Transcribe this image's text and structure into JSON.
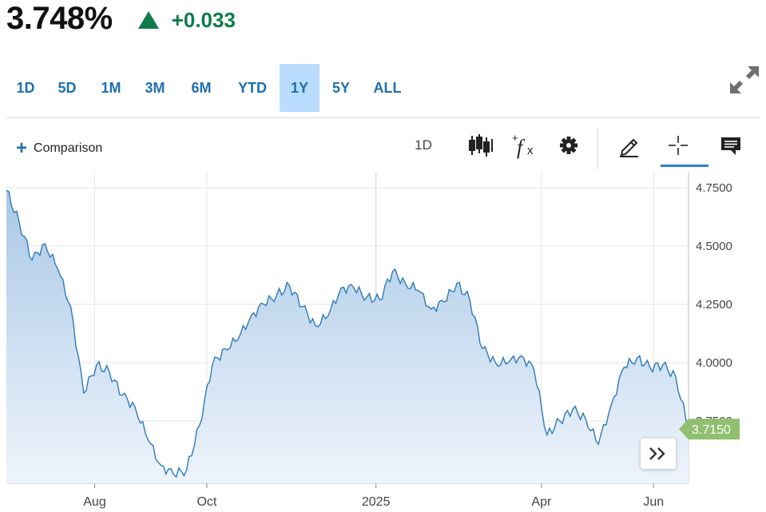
{
  "quote": {
    "price": "3.748%",
    "change": "+0.033",
    "direction_icon": "triangle-up-icon",
    "change_color": "#0f7b4a"
  },
  "ranges": [
    {
      "label": "1D",
      "active": false
    },
    {
      "label": "5D",
      "active": false
    },
    {
      "label": "1M",
      "active": false
    },
    {
      "label": "3M",
      "active": false
    },
    {
      "label": "6M",
      "active": false
    },
    {
      "label": "YTD",
      "active": false
    },
    {
      "label": "1Y",
      "active": true
    },
    {
      "label": "5Y",
      "active": false
    },
    {
      "label": "ALL",
      "active": false
    }
  ],
  "toolbar": {
    "comparison_label": "Comparison",
    "interval_label": "1D",
    "icons": [
      "candlestick-icon",
      "function-icon",
      "gear-icon",
      "pencil-icon",
      "crosshair-icon",
      "comment-icon"
    ]
  },
  "colors": {
    "line": "#2e7ab8",
    "area_top": "#a9c8e6",
    "area_bottom": "#eef4fb",
    "last_price_tag": "#8fbf6f",
    "active_range": "#b9dcff",
    "accent": "#2f80d6"
  },
  "chart_data": {
    "type": "area",
    "ylim": [
      3.5,
      4.75
    ],
    "yticks": [
      "4.7500",
      "4.5000",
      "4.2500",
      "4.0000",
      "3.7500"
    ],
    "xticks": [
      "Aug",
      "Oct",
      "2025",
      "Apr",
      "Jun"
    ],
    "last_value_label": "3.7150",
    "series": [
      {
        "x": [
          "2024-06-14",
          "2024-06-21",
          "2024-06-28",
          "2024-07-05",
          "2024-07-12",
          "2024-07-19",
          "2024-07-26",
          "2024-08-02",
          "2024-08-09",
          "2024-08-16",
          "2024-08-23",
          "2024-08-30",
          "2024-09-06",
          "2024-09-13",
          "2024-09-20",
          "2024-09-27",
          "2024-10-04",
          "2024-10-11",
          "2024-10-18",
          "2024-10-25",
          "2024-11-01",
          "2024-11-08",
          "2024-11-15",
          "2024-11-22",
          "2024-11-29",
          "2024-12-06",
          "2024-12-13",
          "2024-12-20",
          "2024-12-27",
          "2025-01-03",
          "2025-01-10",
          "2025-01-17",
          "2025-01-24",
          "2025-01-31",
          "2025-02-07",
          "2025-02-14",
          "2025-02-21",
          "2025-02-28",
          "2025-03-07",
          "2025-03-14",
          "2025-03-21",
          "2025-03-28",
          "2025-04-04",
          "2025-04-11",
          "2025-04-18",
          "2025-04-25",
          "2025-05-02",
          "2025-05-09",
          "2025-05-16",
          "2025-05-23",
          "2025-05-30",
          "2025-06-06",
          "2025-06-13",
          "2025-06-20"
        ],
        "y": [
          4.74,
          4.6,
          4.44,
          4.51,
          4.4,
          4.24,
          3.87,
          3.99,
          3.96,
          3.86,
          3.81,
          3.67,
          3.56,
          3.52,
          3.54,
          3.73,
          3.99,
          4.06,
          4.1,
          4.2,
          4.25,
          4.29,
          4.33,
          4.24,
          4.16,
          4.2,
          4.32,
          4.32,
          4.28,
          4.27,
          4.39,
          4.34,
          4.31,
          4.23,
          4.26,
          4.34,
          4.27,
          4.06,
          4.0,
          4.0,
          4.03,
          3.97,
          3.69,
          3.75,
          3.8,
          3.76,
          3.65,
          3.82,
          3.98,
          4.02,
          3.98,
          3.99,
          3.94,
          3.715
        ]
      }
    ]
  }
}
